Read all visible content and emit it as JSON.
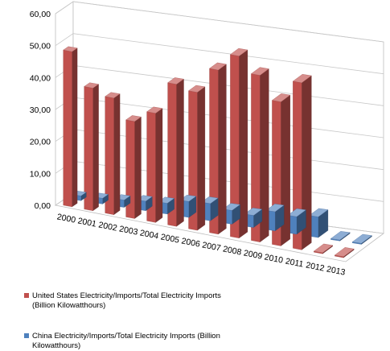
{
  "chart_data": {
    "type": "bar",
    "three_d": true,
    "categories": [
      "2000",
      "2001",
      "2002",
      "2003",
      "2004",
      "2005",
      "2006",
      "2007",
      "2008",
      "2009",
      "2010",
      "2011",
      "2012",
      "2013"
    ],
    "series": [
      {
        "name": "United States Electricity/Imports/Total Electricity Imports (Billion Kilowatthours)",
        "color": "#c0504d",
        "values": [
          48.6,
          38.4,
          36.5,
          30.4,
          34.2,
          44.5,
          43.2,
          51.4,
          57.0,
          52.2,
          45.1,
          52.3,
          0.3,
          0.3
        ]
      },
      {
        "name": "China Electricity/Imports/Total Electricity Imports (Billion Kilowatthours)",
        "color": "#4f81bd",
        "values": [
          1.5,
          1.8,
          2.3,
          3.0,
          3.4,
          5.0,
          5.4,
          4.3,
          3.8,
          6.0,
          5.5,
          6.5,
          0.3,
          0.3
        ]
      }
    ],
    "yticks": [
      "0,00",
      "10,00",
      "20,00",
      "30,00",
      "40,00",
      "50,00",
      "60,00"
    ],
    "ylim": [
      0,
      60
    ],
    "grid": true,
    "legend_position": "bottom-left"
  }
}
